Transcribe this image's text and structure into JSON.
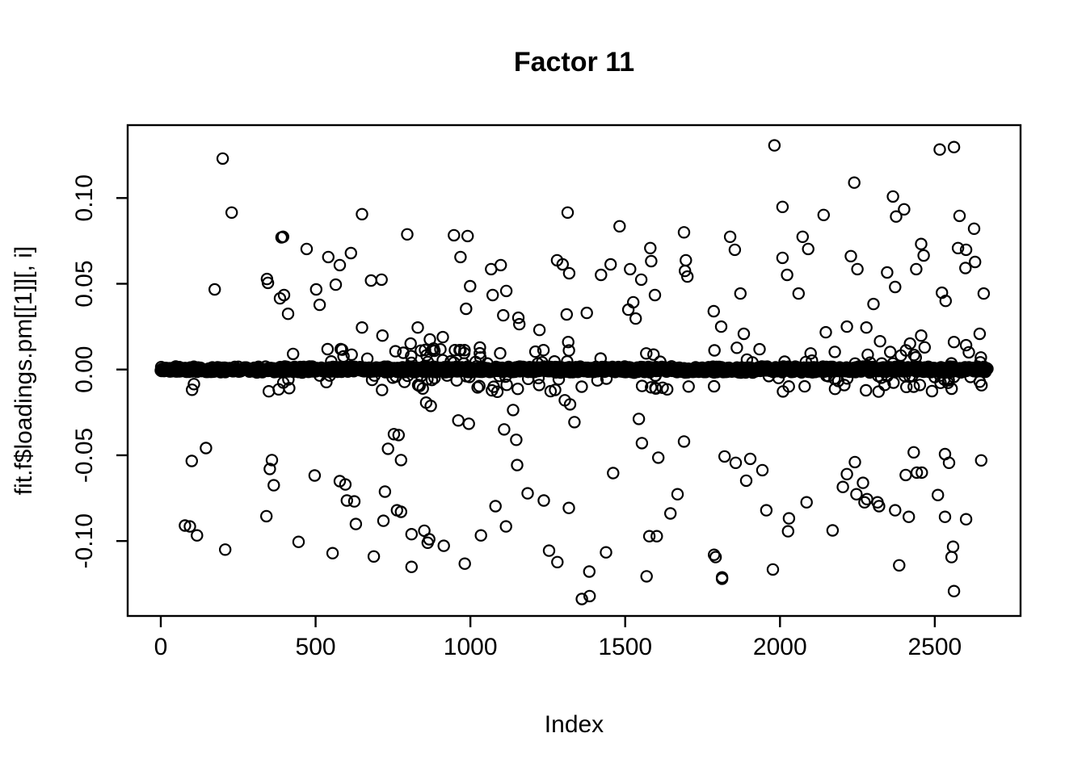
{
  "chart_data": {
    "type": "scatter",
    "title": "Factor 11",
    "xlabel": "Index",
    "ylabel": "fit.f$loadings.pm[[1]][, i]",
    "marker": "open-circle",
    "marker_color": "#000000",
    "background_color": "#ffffff",
    "grid": false,
    "legend": false,
    "n_points_total": 2670,
    "xlim": [
      -107,
      2777
    ],
    "ylim": [
      -0.1437,
      0.1425
    ],
    "x_ticks": [
      0,
      500,
      1000,
      1500,
      2000,
      2500
    ],
    "x_tick_labels": [
      "0",
      "500",
      "1000",
      "1500",
      "2000",
      "2500"
    ],
    "y_ticks": [
      -0.1,
      -0.05,
      0.0,
      0.05,
      0.1
    ],
    "y_tick_labels": [
      "-0.10",
      "-0.05",
      "0.00",
      "0.05",
      "0.10"
    ],
    "zero_band": {
      "description": "vast majority of the 2670 loadings are approximately 0, overlapping into a solid horizontal band",
      "index_range": [
        0,
        2670
      ],
      "value_center": 0.0,
      "value_jitter": 0.0019,
      "count": 2100,
      "fringe_count": 150,
      "fringe_value_max": 0.013
    },
    "outliers": [
      [
        200,
        0.123
      ],
      [
        229,
        0.0915
      ],
      [
        174,
        0.0467
      ],
      [
        390,
        0.077
      ],
      [
        346,
        0.0505
      ],
      [
        385,
        0.0415
      ],
      [
        395,
        0.0774
      ],
      [
        471,
        0.0703
      ],
      [
        541,
        0.0656
      ],
      [
        578,
        0.0609
      ],
      [
        614,
        0.0679
      ],
      [
        650,
        0.0906
      ],
      [
        343,
        0.0528
      ],
      [
        398,
        0.0434
      ],
      [
        502,
        0.0467
      ],
      [
        565,
        0.0495
      ],
      [
        513,
        0.0377
      ],
      [
        411,
        0.0325
      ],
      [
        796,
        0.0788
      ],
      [
        947,
        0.0783
      ],
      [
        991,
        0.0778
      ],
      [
        968,
        0.0656
      ],
      [
        679,
        0.0519
      ],
      [
        713,
        0.0524
      ],
      [
        999,
        0.0486
      ],
      [
        1067,
        0.0585
      ],
      [
        1098,
        0.0609
      ],
      [
        1072,
        0.0434
      ],
      [
        1116,
        0.0458
      ],
      [
        986,
        0.0354
      ],
      [
        1106,
        0.0316
      ],
      [
        1155,
        0.0302
      ],
      [
        1158,
        0.0264
      ],
      [
        1280,
        0.0637
      ],
      [
        1298,
        0.0613
      ],
      [
        1319,
        0.0561
      ],
      [
        1314,
        0.0915
      ],
      [
        1311,
        0.0321
      ],
      [
        1223,
        0.0231
      ],
      [
        1316,
        0.016
      ],
      [
        650,
        0.0245
      ],
      [
        716,
        0.0198
      ],
      [
        830,
        0.0245
      ],
      [
        807,
        0.0151
      ],
      [
        869,
        0.0175
      ],
      [
        877,
        0.0113
      ],
      [
        911,
        0.0189
      ],
      [
        903,
        0.0118
      ],
      [
        950,
        0.0113
      ],
      [
        968,
        0.0113
      ],
      [
        981,
        0.0113
      ],
      [
        1210,
        0.0104
      ],
      [
        1236,
        0.0113
      ],
      [
        1376,
        0.033
      ],
      [
        1982,
        0.1307
      ],
      [
        2516,
        0.1283
      ],
      [
        2562,
        0.1297
      ],
      [
        2240,
        0.109
      ],
      [
        2365,
        0.1009
      ],
      [
        2401,
        0.0934
      ],
      [
        2375,
        0.0892
      ],
      [
        2008,
        0.0948
      ],
      [
        2141,
        0.0901
      ],
      [
        1839,
        0.0774
      ],
      [
        2073,
        0.0774
      ],
      [
        2008,
        0.0651
      ],
      [
        2229,
        0.0661
      ],
      [
        2456,
        0.0732
      ],
      [
        2464,
        0.0665
      ],
      [
        2580,
        0.0896
      ],
      [
        2627,
        0.0821
      ],
      [
        2575,
        0.0708
      ],
      [
        2601,
        0.0698
      ],
      [
        2599,
        0.0592
      ],
      [
        2630,
        0.0627
      ],
      [
        1690,
        0.08
      ],
      [
        1696,
        0.0637
      ],
      [
        1482,
        0.0835
      ],
      [
        1453,
        0.0613
      ],
      [
        1422,
        0.0552
      ],
      [
        1516,
        0.0585
      ],
      [
        1552,
        0.0524
      ],
      [
        1581,
        0.0708
      ],
      [
        1584,
        0.0632
      ],
      [
        1854,
        0.0698
      ],
      [
        2091,
        0.0703
      ],
      [
        1596,
        0.0434
      ],
      [
        1872,
        0.0443
      ],
      [
        2060,
        0.0443
      ],
      [
        2346,
        0.0566
      ],
      [
        2372,
        0.0481
      ],
      [
        2440,
        0.0585
      ],
      [
        2535,
        0.04
      ],
      [
        2523,
        0.0448
      ],
      [
        2658,
        0.0443
      ],
      [
        1526,
        0.0392
      ],
      [
        1510,
        0.0349
      ],
      [
        1534,
        0.0297
      ],
      [
        1786,
        0.034
      ],
      [
        1810,
        0.025
      ],
      [
        1883,
        0.0208
      ],
      [
        2302,
        0.0382
      ],
      [
        2148,
        0.0217
      ],
      [
        2216,
        0.025
      ],
      [
        2279,
        0.0245
      ],
      [
        2323,
        0.0165
      ],
      [
        2099,
        0.0094
      ],
      [
        2103,
        0.0052
      ],
      [
        1568,
        0.0094
      ],
      [
        2645,
        0.0208
      ],
      [
        2562,
        0.016
      ],
      [
        2601,
        0.0142
      ],
      [
        2420,
        0.0151
      ],
      [
        2433,
        0.0085
      ],
      [
        2023,
        0.0552
      ],
      [
        2250,
        0.0585
      ],
      [
        1693,
        0.0575
      ],
      [
        1701,
        0.0542
      ],
      [
        2456,
        0.0198
      ],
      [
        107,
        -0.0085
      ],
      [
        101,
        -0.0118
      ],
      [
        349,
        -0.0127
      ],
      [
        146,
        -0.0458
      ],
      [
        100,
        -0.0533
      ],
      [
        359,
        -0.0528
      ],
      [
        352,
        -0.058
      ],
      [
        365,
        -0.0675
      ],
      [
        497,
        -0.0618
      ],
      [
        578,
        -0.0651
      ],
      [
        596,
        -0.067
      ],
      [
        601,
        -0.0764
      ],
      [
        625,
        -0.0769
      ],
      [
        341,
        -0.0855
      ],
      [
        630,
        -0.0901
      ],
      [
        78,
        -0.091
      ],
      [
        94,
        -0.0915
      ],
      [
        117,
        -0.0967
      ],
      [
        208,
        -0.105
      ],
      [
        445,
        -0.1005
      ],
      [
        555,
        -0.1071
      ],
      [
        724,
        -0.0712
      ],
      [
        719,
        -0.0882
      ],
      [
        688,
        -0.109
      ],
      [
        753,
        -0.0377
      ],
      [
        768,
        -0.0382
      ],
      [
        734,
        -0.0462
      ],
      [
        776,
        -0.0528
      ],
      [
        763,
        -0.0821
      ],
      [
        776,
        -0.083
      ],
      [
        810,
        -0.096
      ],
      [
        851,
        -0.094
      ],
      [
        867,
        -0.099
      ],
      [
        862,
        -0.101
      ],
      [
        914,
        -0.1028
      ],
      [
        810,
        -0.1151
      ],
      [
        982,
        -0.1132
      ],
      [
        1034,
        -0.0967
      ],
      [
        1115,
        -0.0915
      ],
      [
        1081,
        -0.0797
      ],
      [
        1151,
        -0.0557
      ],
      [
        1185,
        -0.0722
      ],
      [
        1237,
        -0.0764
      ],
      [
        1318,
        -0.0807
      ],
      [
        1281,
        -0.1123
      ],
      [
        1138,
        -0.0236
      ],
      [
        1109,
        -0.0349
      ],
      [
        1148,
        -0.041
      ],
      [
        857,
        -0.0193
      ],
      [
        872,
        -0.0212
      ],
      [
        961,
        -0.0297
      ],
      [
        995,
        -0.0316
      ],
      [
        1305,
        -0.0179
      ],
      [
        1322,
        -0.0203
      ],
      [
        1254,
        -0.1056
      ],
      [
        1384,
        -0.1178
      ],
      [
        1360,
        -0.1338
      ],
      [
        1569,
        -0.1206
      ],
      [
        1792,
        -0.1094
      ],
      [
        1813,
        -0.122
      ],
      [
        1336,
        -0.0307
      ],
      [
        1544,
        -0.0288
      ],
      [
        1554,
        -0.0429
      ],
      [
        1607,
        -0.0514
      ],
      [
        1690,
        -0.042
      ],
      [
        1461,
        -0.0604
      ],
      [
        1669,
        -0.0727
      ],
      [
        1646,
        -0.0839
      ],
      [
        1578,
        -0.0972
      ],
      [
        1602,
        -0.0972
      ],
      [
        1438,
        -0.1066
      ],
      [
        1385,
        -0.1321
      ],
      [
        1821,
        -0.0507
      ],
      [
        1857,
        -0.0544
      ],
      [
        1904,
        -0.0521
      ],
      [
        1943,
        -0.0587
      ],
      [
        1891,
        -0.0648
      ],
      [
        2242,
        -0.054
      ],
      [
        2216,
        -0.061
      ],
      [
        2203,
        -0.0685
      ],
      [
        2268,
        -0.0661
      ],
      [
        2247,
        -0.0727
      ],
      [
        2281,
        -0.0756
      ],
      [
        2273,
        -0.0774
      ],
      [
        2315,
        -0.0774
      ],
      [
        2320,
        -0.0797
      ],
      [
        2372,
        -0.0821
      ],
      [
        2416,
        -0.0859
      ],
      [
        2406,
        -0.0615
      ],
      [
        2442,
        -0.0601
      ],
      [
        2458,
        -0.0601
      ],
      [
        2510,
        -0.0732
      ],
      [
        2533,
        -0.0859
      ],
      [
        2601,
        -0.0873
      ],
      [
        2533,
        -0.0493
      ],
      [
        2546,
        -0.0544
      ],
      [
        2650,
        -0.053
      ],
      [
        2432,
        -0.0483
      ],
      [
        2086,
        -0.0774
      ],
      [
        1956,
        -0.0821
      ],
      [
        2029,
        -0.0868
      ],
      [
        2026,
        -0.0943
      ],
      [
        2170,
        -0.0938
      ],
      [
        1787,
        -0.108
      ],
      [
        1813,
        -0.1212
      ],
      [
        1977,
        -0.1166
      ],
      [
        2385,
        -0.1142
      ],
      [
        2559,
        -0.1033
      ],
      [
        2554,
        -0.1094
      ],
      [
        2562,
        -0.1292
      ]
    ]
  }
}
